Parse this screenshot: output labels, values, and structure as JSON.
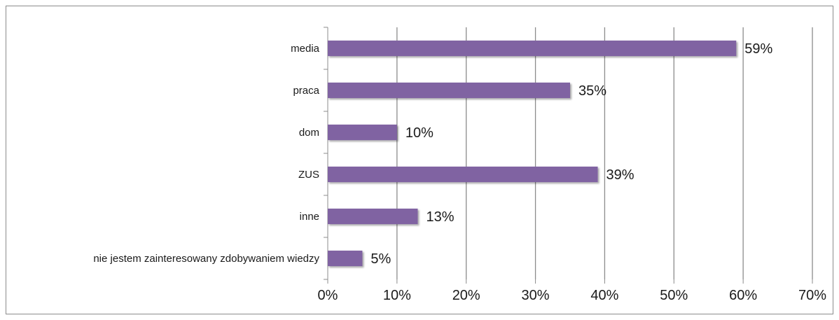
{
  "chart_data": {
    "type": "bar",
    "orientation": "horizontal",
    "categories": [
      "media",
      "praca",
      "dom",
      "ZUS",
      "inne",
      "nie jestem zainteresowany zdobywaniem wiedzy"
    ],
    "values": [
      59,
      35,
      10,
      39,
      13,
      5
    ],
    "data_labels": [
      "59%",
      "35%",
      "10%",
      "39%",
      "13%",
      "5%"
    ],
    "x_ticks": [
      "0%",
      "10%",
      "20%",
      "30%",
      "40%",
      "50%",
      "60%",
      "70%"
    ],
    "xlim": [
      0,
      70
    ],
    "grid": true,
    "legend": "none",
    "title": "",
    "xlabel": "",
    "ylabel": "",
    "colors": {
      "bar": "#8064a2",
      "gridline": "#8c8c8c",
      "axis": "#8c8c8c",
      "text": "#1a1a1a"
    }
  }
}
